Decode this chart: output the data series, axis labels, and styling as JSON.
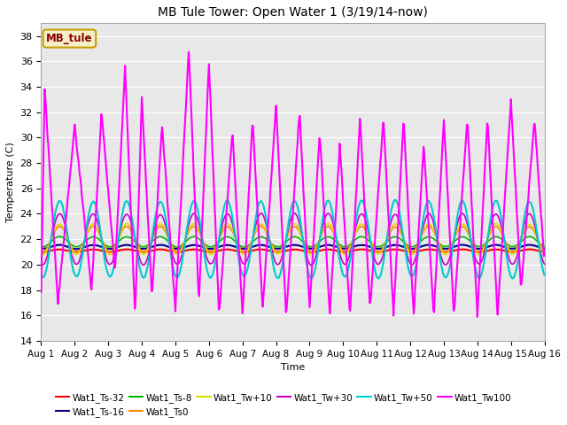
{
  "title": "MB Tule Tower: Open Water 1 (3/19/14-now)",
  "xlabel": "Time",
  "ylabel": "Temperature (C)",
  "ylim": [
    14,
    39
  ],
  "yticks": [
    14,
    16,
    18,
    20,
    22,
    24,
    26,
    28,
    30,
    32,
    34,
    36,
    38
  ],
  "xtick_labels": [
    "Aug 1",
    "Aug 2",
    "Aug 3",
    "Aug 4",
    "Aug 5",
    "Aug 6",
    "Aug 7",
    "Aug 8",
    "Aug 9",
    "Aug 10",
    "Aug 11",
    "Aug 12",
    "Aug 13",
    "Aug 14",
    "Aug 15",
    "Aug 16"
  ],
  "legend_label": "MB_tule",
  "legend_box_color": "#f5f0c8",
  "legend_box_edge": "#c8a000",
  "legend_text_color": "#8b0000",
  "plot_bg": "#e8e8e8",
  "fig_bg": "#ffffff",
  "series": [
    {
      "name": "Wat1_Ts-32",
      "color": "#ff0000",
      "lw": 1.5,
      "base": 21.1,
      "amp": 0.1,
      "smooth": 0.95
    },
    {
      "name": "Wat1_Ts-16",
      "color": "#00008b",
      "lw": 1.5,
      "base": 21.4,
      "amp": 0.15,
      "smooth": 0.93
    },
    {
      "name": "Wat1_Ts-8",
      "color": "#00bb00",
      "lw": 1.2,
      "base": 21.8,
      "amp": 0.4,
      "smooth": 0.88
    },
    {
      "name": "Wat1_Ts0",
      "color": "#ff8800",
      "lw": 1.2,
      "base": 22.0,
      "amp": 1.0,
      "smooth": 0.8
    },
    {
      "name": "Wat1_Tw+10",
      "color": "#dddd00",
      "lw": 1.2,
      "base": 22.0,
      "amp": 1.2,
      "smooth": 0.78
    },
    {
      "name": "Wat1_Tw+30",
      "color": "#cc00cc",
      "lw": 1.2,
      "base": 22.0,
      "amp": 2.0,
      "smooth": 0.7
    },
    {
      "name": "Wat1_Tw+50",
      "color": "#00cccc",
      "lw": 1.5,
      "base": 22.0,
      "amp": 3.0,
      "smooth": 0.6
    },
    {
      "name": "Wat1_Tw100",
      "color": "#ff00ff",
      "lw": 1.5,
      "base": 22.0,
      "amp": 8.0,
      "smooth": 0.0
    }
  ],
  "tw100_peaks": [
    0.1,
    1.0,
    1.8,
    2.5,
    3.0,
    3.6,
    4.4,
    5.0,
    5.7,
    6.3,
    7.0,
    7.7,
    8.3,
    8.9,
    9.5,
    10.2,
    10.8,
    11.4,
    12.0,
    12.7,
    13.3,
    14.0,
    14.7
  ],
  "tw100_peak_vals": [
    34,
    31,
    32,
    35.5,
    33,
    31,
    37,
    36,
    30.5,
    31.5,
    32.5,
    32,
    30.5,
    29.5,
    31.5,
    31.5,
    31.5,
    29.5,
    31.5,
    31.5,
    31.5,
    33,
    31.5
  ],
  "tw100_valleys": [
    0.5,
    1.5,
    2.2,
    2.8,
    3.3,
    4.0,
    4.7,
    5.3,
    6.0,
    6.6,
    7.3,
    8.0,
    8.6,
    9.2,
    9.8,
    10.5,
    11.1,
    11.7,
    12.3,
    13.0,
    13.6,
    14.3,
    15.0
  ],
  "tw100_valley_vals": [
    17,
    18,
    19.5,
    16,
    17.5,
    16.5,
    17,
    16,
    16,
    16.5,
    16,
    16.5,
    16,
    16,
    16.5,
    16,
    16,
    16,
    16,
    16,
    16,
    18,
    20
  ]
}
